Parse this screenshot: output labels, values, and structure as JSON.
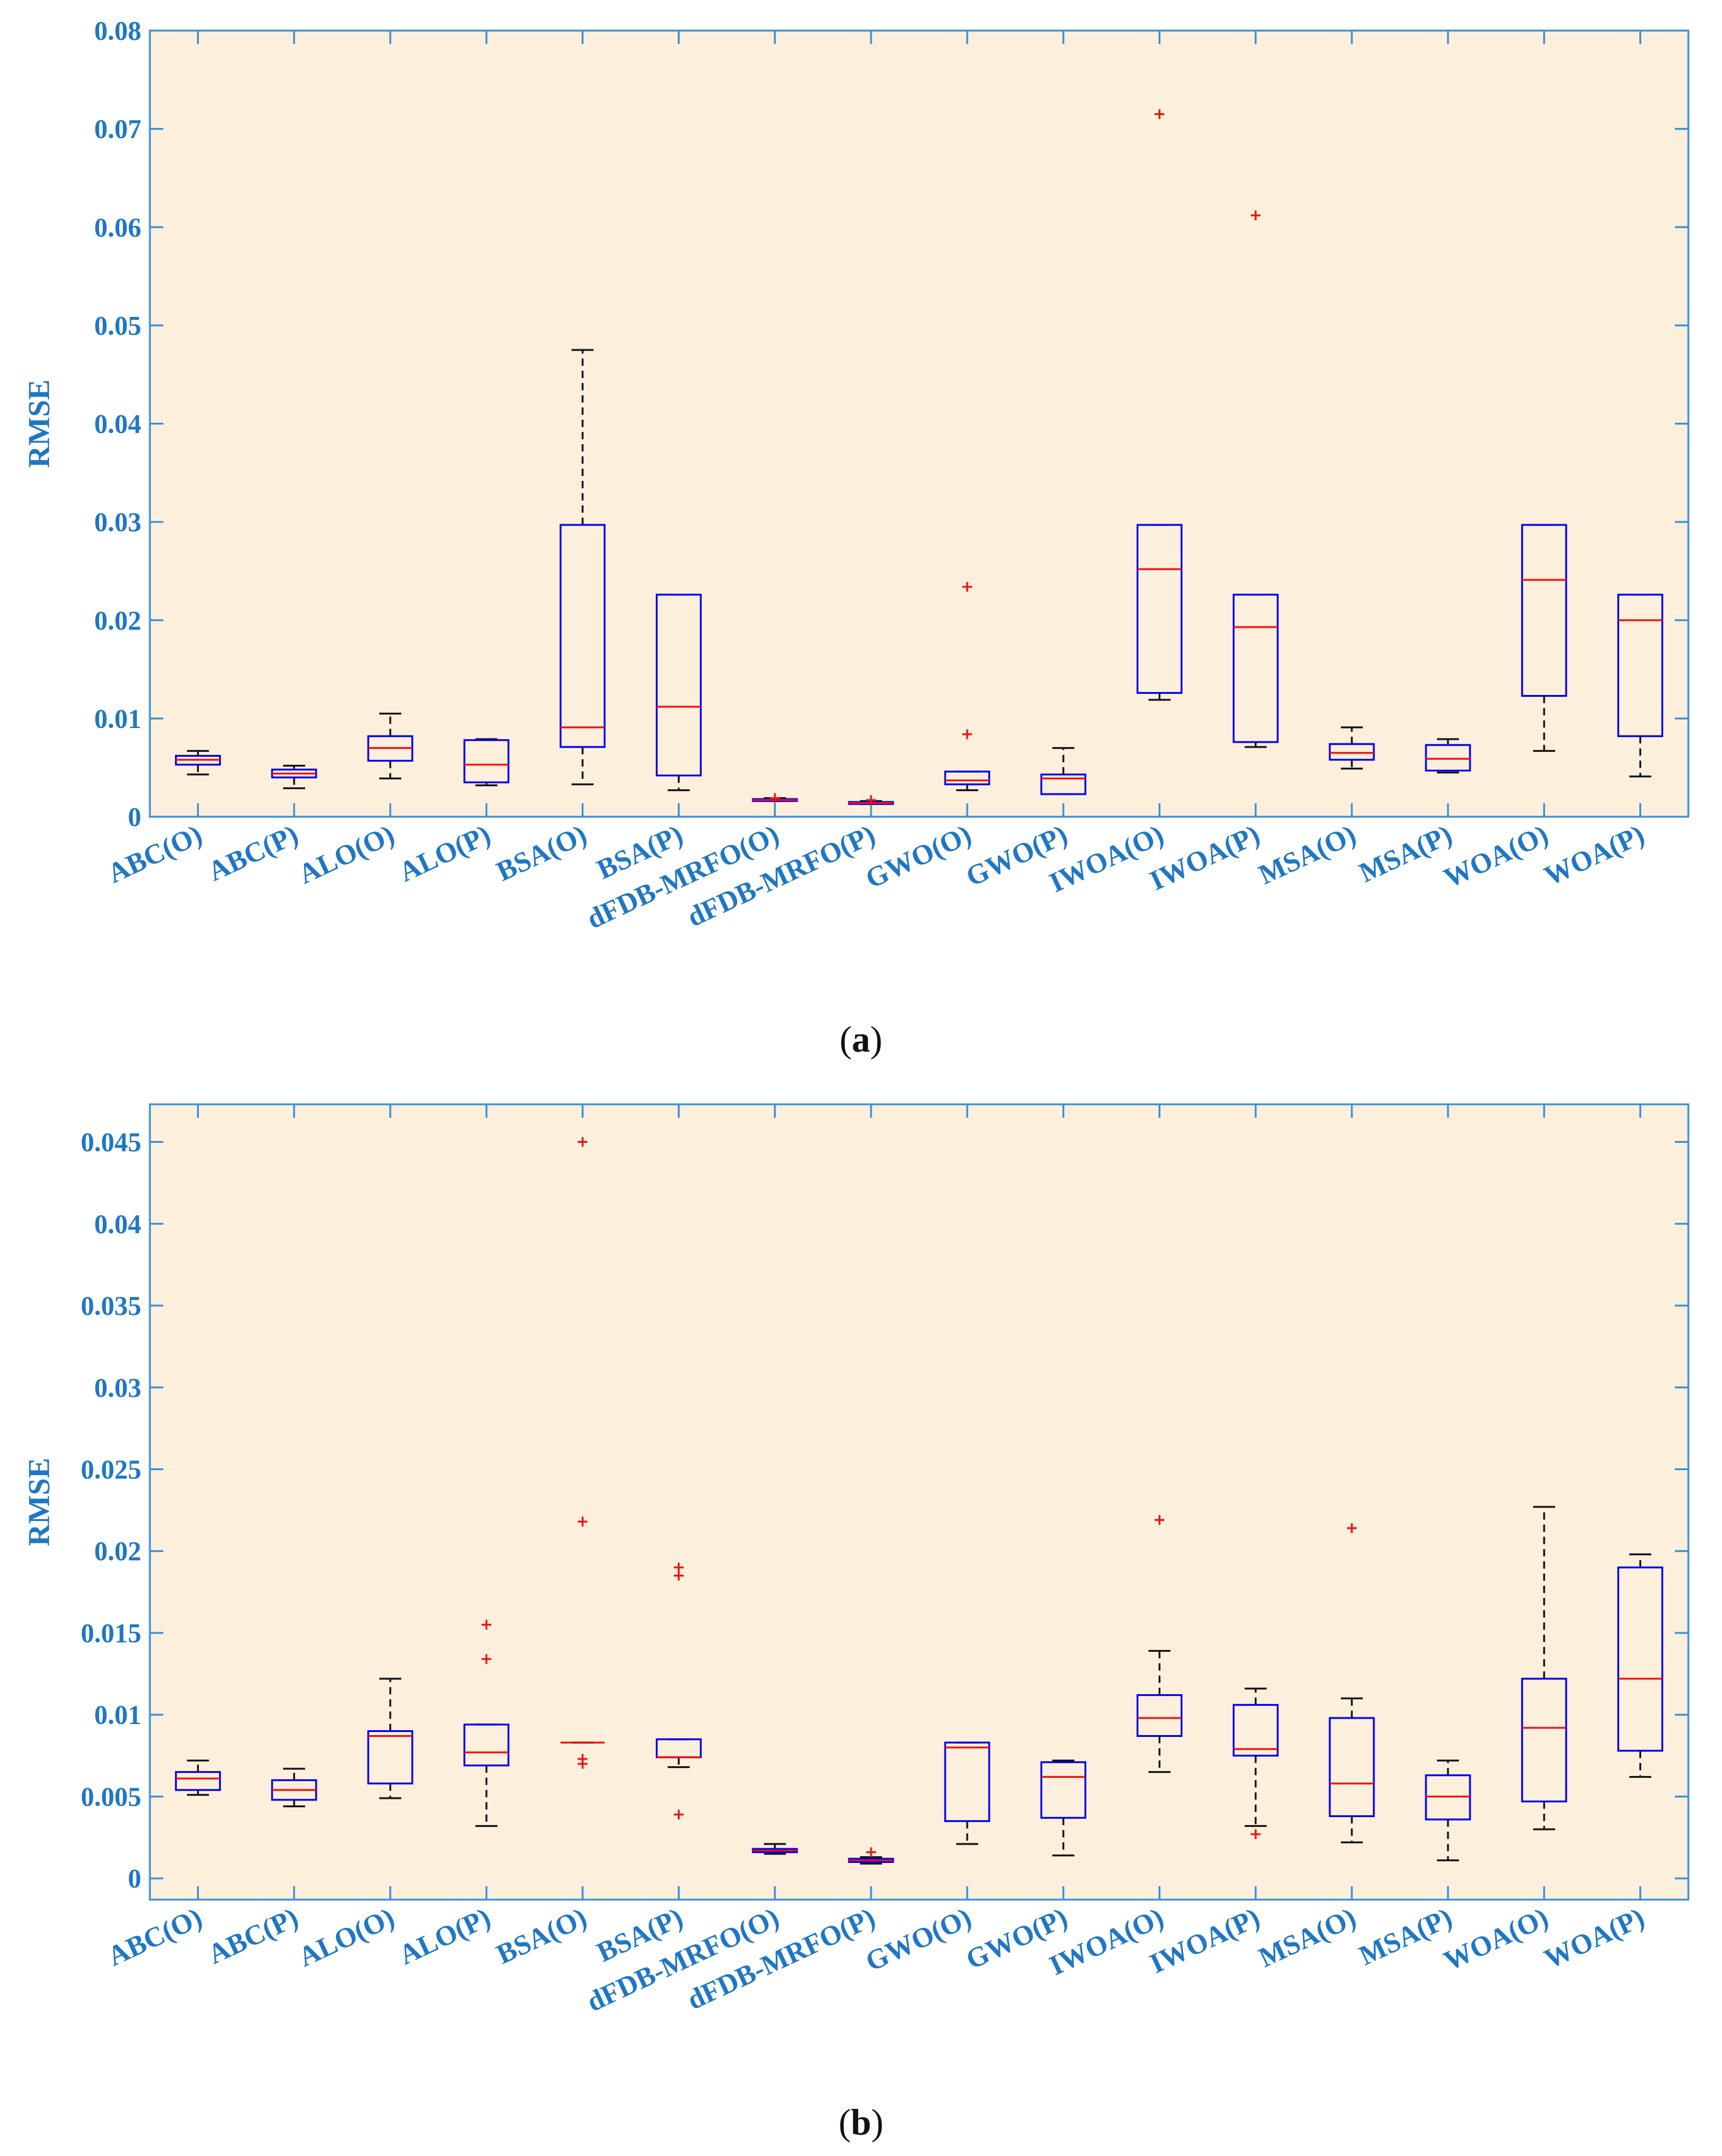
{
  "colors": {
    "plot_bg": "#fcefdc",
    "axis": "#3a8fd6",
    "tick_text": "#1f77c4",
    "box": "#0000ee",
    "median": "#ee1111",
    "whisker": "#111111",
    "outlier": "#ee1111"
  },
  "chart_data": [
    {
      "type": "box",
      "panel": "a",
      "caption_letter": "a",
      "ylabel": "RMSE",
      "ylim": [
        0,
        0.08
      ],
      "yticks": [
        0,
        0.01,
        0.02,
        0.03,
        0.04,
        0.05,
        0.06,
        0.07,
        0.08
      ],
      "ytick_labels": [
        "0",
        "0.01",
        "0.02",
        "0.03",
        "0.04",
        "0.05",
        "0.06",
        "0.07",
        "0.08"
      ],
      "categories": [
        "ABC(O)",
        "ABC(P)",
        "ALO(O)",
        "ALO(P)",
        "BSA(O)",
        "BSA(P)",
        "dFDB-MRFO(O)",
        "dFDB-MRFO(P)",
        "GWO(O)",
        "GWO(P)",
        "IWOA(O)",
        "IWOA(P)",
        "MSA(O)",
        "MSA(P)",
        "WOA(O)",
        "WOA(P)"
      ],
      "boxes": [
        {
          "min": 0.0043,
          "q1": 0.0053,
          "median": 0.0058,
          "q3": 0.0062,
          "max": 0.0067,
          "outliers": []
        },
        {
          "min": 0.0029,
          "q1": 0.004,
          "median": 0.0044,
          "q3": 0.0048,
          "max": 0.0052,
          "outliers": []
        },
        {
          "min": 0.0039,
          "q1": 0.0057,
          "median": 0.007,
          "q3": 0.0082,
          "max": 0.0105,
          "outliers": []
        },
        {
          "min": 0.0032,
          "q1": 0.0035,
          "median": 0.0053,
          "q3": 0.0078,
          "max": 0.0079,
          "outliers": []
        },
        {
          "min": 0.0033,
          "q1": 0.0071,
          "median": 0.0091,
          "q3": 0.0297,
          "max": 0.0475,
          "outliers": []
        },
        {
          "min": 0.0027,
          "q1": 0.0042,
          "median": 0.0112,
          "q3": 0.0226,
          "max": 0.0226,
          "outliers": []
        },
        {
          "min": 0.0016,
          "q1": 0.0016,
          "median": 0.0017,
          "q3": 0.0018,
          "max": 0.0019,
          "outliers": [
            0.0019
          ]
        },
        {
          "min": 0.0013,
          "q1": 0.0013,
          "median": 0.0014,
          "q3": 0.0015,
          "max": 0.0016,
          "outliers": [
            0.0017
          ]
        },
        {
          "min": 0.0027,
          "q1": 0.0033,
          "median": 0.0037,
          "q3": 0.0046,
          "max": 0.0046,
          "outliers": [
            0.0084,
            0.0234
          ]
        },
        {
          "min": 0.0023,
          "q1": 0.0023,
          "median": 0.0039,
          "q3": 0.0043,
          "max": 0.007,
          "outliers": []
        },
        {
          "min": 0.0119,
          "q1": 0.0126,
          "median": 0.0252,
          "q3": 0.0297,
          "max": 0.0297,
          "outliers": [
            0.0715
          ]
        },
        {
          "min": 0.0071,
          "q1": 0.0076,
          "median": 0.0193,
          "q3": 0.0226,
          "max": 0.0226,
          "outliers": [
            0.0612
          ]
        },
        {
          "min": 0.0049,
          "q1": 0.0058,
          "median": 0.0065,
          "q3": 0.0074,
          "max": 0.0091,
          "outliers": []
        },
        {
          "min": 0.0045,
          "q1": 0.0047,
          "median": 0.0059,
          "q3": 0.0073,
          "max": 0.0079,
          "outliers": []
        },
        {
          "min": 0.0067,
          "q1": 0.0123,
          "median": 0.0241,
          "q3": 0.0297,
          "max": 0.0297,
          "outliers": []
        },
        {
          "min": 0.0041,
          "q1": 0.0082,
          "median": 0.02,
          "q3": 0.0226,
          "max": 0.0226,
          "outliers": []
        }
      ]
    },
    {
      "type": "box",
      "panel": "b",
      "caption_letter": "b",
      "ylabel": "RMSE",
      "ylim": [
        -0.0013,
        0.0473
      ],
      "yticks": [
        0,
        0.005,
        0.01,
        0.015,
        0.02,
        0.025,
        0.03,
        0.035,
        0.04,
        0.045
      ],
      "ytick_labels": [
        "0",
        "0.005",
        "0.01",
        "0.015",
        "0.02",
        "0.025",
        "0.03",
        "0.035",
        "0.04",
        "0.045"
      ],
      "categories": [
        "ABC(O)",
        "ABC(P)",
        "ALO(O)",
        "ALO(P)",
        "BSA(O)",
        "BSA(P)",
        "dFDB-MRFO(O)",
        "dFDB-MRFO(P)",
        "GWO(O)",
        "GWO(P)",
        "IWOA(O)",
        "IWOA(P)",
        "MSA(O)",
        "MSA(P)",
        "WOA(O)",
        "WOA(P)"
      ],
      "boxes": [
        {
          "min": 0.0051,
          "q1": 0.0054,
          "median": 0.0061,
          "q3": 0.0065,
          "max": 0.0072,
          "outliers": []
        },
        {
          "min": 0.0044,
          "q1": 0.0048,
          "median": 0.0054,
          "q3": 0.006,
          "max": 0.0067,
          "outliers": []
        },
        {
          "min": 0.0049,
          "q1": 0.0058,
          "median": 0.0087,
          "q3": 0.009,
          "max": 0.0122,
          "outliers": []
        },
        {
          "min": 0.0032,
          "q1": 0.0069,
          "median": 0.0077,
          "q3": 0.0094,
          "max": 0.0094,
          "outliers": [
            0.0134,
            0.0155
          ]
        },
        {
          "min": 0.0083,
          "q1": 0.0083,
          "median": 0.0083,
          "q3": 0.0083,
          "max": 0.0083,
          "outliers": [
            0.007,
            0.0073,
            0.0218,
            0.045
          ]
        },
        {
          "min": 0.0068,
          "q1": 0.0074,
          "median": 0.0074,
          "q3": 0.0085,
          "max": 0.0085,
          "outliers": [
            0.0039,
            0.0185,
            0.019
          ]
        },
        {
          "min": 0.0015,
          "q1": 0.0016,
          "median": 0.0017,
          "q3": 0.0018,
          "max": 0.0021,
          "outliers": []
        },
        {
          "min": 0.0009,
          "q1": 0.001,
          "median": 0.0011,
          "q3": 0.0012,
          "max": 0.0013,
          "outliers": [
            0.0016
          ]
        },
        {
          "min": 0.0021,
          "q1": 0.0035,
          "median": 0.008,
          "q3": 0.0083,
          "max": 0.0083,
          "outliers": []
        },
        {
          "min": 0.0014,
          "q1": 0.0037,
          "median": 0.0062,
          "q3": 0.0071,
          "max": 0.0072,
          "outliers": []
        },
        {
          "min": 0.0065,
          "q1": 0.0087,
          "median": 0.0098,
          "q3": 0.0112,
          "max": 0.0139,
          "outliers": [
            0.0219
          ]
        },
        {
          "min": 0.0032,
          "q1": 0.0075,
          "median": 0.0079,
          "q3": 0.0106,
          "max": 0.0116,
          "outliers": [
            0.0027
          ]
        },
        {
          "min": 0.0022,
          "q1": 0.0038,
          "median": 0.0058,
          "q3": 0.0098,
          "max": 0.011,
          "outliers": [
            0.0214
          ]
        },
        {
          "min": 0.0011,
          "q1": 0.0036,
          "median": 0.005,
          "q3": 0.0063,
          "max": 0.0072,
          "outliers": []
        },
        {
          "min": 0.003,
          "q1": 0.0047,
          "median": 0.0092,
          "q3": 0.0122,
          "max": 0.0227,
          "outliers": []
        },
        {
          "min": 0.0062,
          "q1": 0.0078,
          "median": 0.0122,
          "q3": 0.019,
          "max": 0.0198,
          "outliers": []
        }
      ]
    }
  ]
}
